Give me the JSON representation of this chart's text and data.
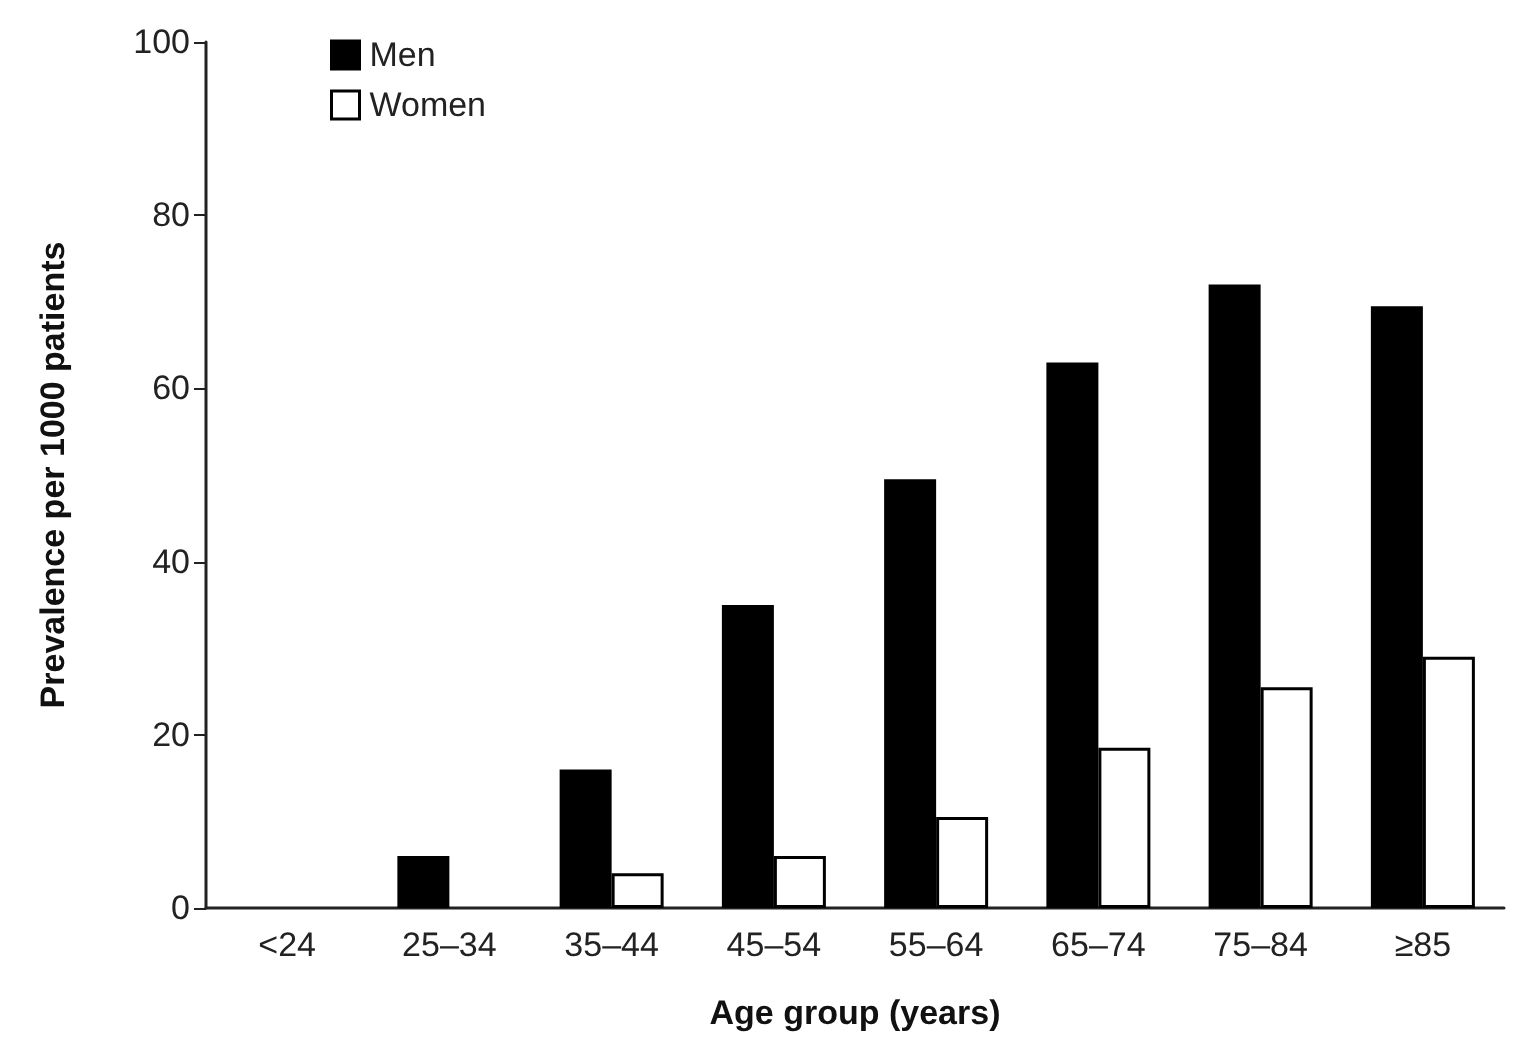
{
  "chart_data": {
    "type": "bar",
    "xlabel": "Age group (years)",
    "ylabel": "Prevalence per 1000 patients",
    "categories": [
      "<24",
      "25–34",
      "35–44",
      "45–54",
      "55–64",
      "65–74",
      "75–84",
      "≥85"
    ],
    "series": [
      {
        "name": "Men",
        "color": "#000000",
        "values": [
          null,
          6,
          16,
          35,
          49.5,
          63,
          72,
          69.5
        ]
      },
      {
        "name": "Women",
        "color": "#ffffff",
        "values": [
          null,
          null,
          4,
          6,
          10.5,
          18.5,
          25.5,
          29
        ]
      }
    ],
    "ylim": [
      0,
      100
    ],
    "yticks": [
      0,
      20,
      40,
      60,
      80,
      100
    ],
    "grid": false,
    "legend": "top left"
  }
}
